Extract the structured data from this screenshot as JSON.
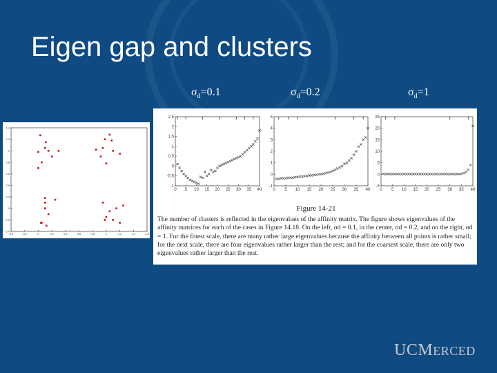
{
  "slide": {
    "title": "Eigen gap and clusters",
    "sigma_labels": [
      {
        "pre": "σ",
        "sub": "d",
        "post": "=0.1"
      },
      {
        "pre": "σ",
        "sub": "d",
        "post": "=0.2"
      },
      {
        "pre": "σ",
        "sub": "d",
        "post": "=1"
      }
    ],
    "logo": {
      "part1": "UC",
      "part2": "M",
      "part3": "ERCED"
    },
    "colors": {
      "background": "#0f4a82",
      "points": "#cc1111",
      "text": "#ffffff"
    }
  },
  "figure": {
    "label": "Figure 14-21",
    "caption": "The number of clusters is reflected in the eigenvalues of the affinity matrix. The figure shows eigenvalues of the affinity matrices for each of the cases in Figure 14.18. On the left, σd = 0.1, in the center, σd = 0.2, and on the right, σd = 1. For the finest scale, there are many rather large eigenvalues because the affinity between all points is rather small; for the next scale, there are four eigenvalues rather larger than the rest; and for the coarsest scale, there are only two eigenvalues rather larger than the rest."
  },
  "chart_data": [
    {
      "type": "scatter",
      "title": "",
      "xlim": [
        -0.4,
        1.6
      ],
      "ylim": [
        -0.4,
        1.4
      ],
      "xticks": [
        "-0.4",
        "-0.2",
        "0",
        "0.2",
        "0.4",
        "0.6",
        "0.8",
        "1",
        "1.2",
        "1.4",
        "1.6"
      ],
      "yticks": [
        "-0.4",
        "-0.2",
        "0",
        "0.2",
        "0.4",
        "0.6",
        "0.8",
        "1",
        "1.2",
        "1.4"
      ],
      "points": [
        [
          0.03,
          1.27
        ],
        [
          0.11,
          1.15
        ],
        [
          0.15,
          1.0
        ],
        [
          0.2,
          0.9
        ],
        [
          0.3,
          1.0
        ],
        [
          0.0,
          0.98
        ],
        [
          0.05,
          0.8
        ],
        [
          0.0,
          0.7
        ],
        [
          0.1,
          1.05
        ],
        [
          1.05,
          1.28
        ],
        [
          0.95,
          1.05
        ],
        [
          0.85,
          1.02
        ],
        [
          0.92,
          0.9
        ],
        [
          1.1,
          1.0
        ],
        [
          1.0,
          0.78
        ],
        [
          1.2,
          0.95
        ],
        [
          1.08,
          1.18
        ],
        [
          0.98,
          1.2
        ],
        [
          0.1,
          0.18
        ],
        [
          0.25,
          0.15
        ],
        [
          0.1,
          0.0
        ],
        [
          0.15,
          -0.1
        ],
        [
          0.05,
          -0.25
        ],
        [
          0.12,
          -0.3
        ],
        [
          0.1,
          0.1
        ],
        [
          0.04,
          -0.25
        ],
        [
          0.95,
          0.1
        ],
        [
          1.05,
          -0.05
        ],
        [
          1.15,
          0.0
        ],
        [
          1.2,
          -0.25
        ],
        [
          1.1,
          -0.2
        ],
        [
          1.0,
          -0.15
        ],
        [
          0.98,
          -0.2
        ],
        [
          1.25,
          0.05
        ]
      ]
    },
    {
      "type": "scatter",
      "xlim": [
        0,
        40
      ],
      "ylim": [
        -1,
        2.5
      ],
      "xticks": [
        "0",
        "5",
        "10",
        "15",
        "20",
        "25",
        "30",
        "35",
        "40"
      ],
      "yticks": [
        "-1",
        "-0.5",
        "0",
        "0.5",
        "1",
        "1.5",
        "2",
        "2.5"
      ],
      "points": [
        [
          1,
          0.1
        ],
        [
          2,
          -0.1
        ],
        [
          3,
          -0.25
        ],
        [
          4,
          -0.4
        ],
        [
          5,
          -0.5
        ],
        [
          6,
          -0.6
        ],
        [
          7,
          -0.7
        ],
        [
          8,
          -0.75
        ],
        [
          9,
          -0.8
        ],
        [
          10,
          -0.85
        ],
        [
          11,
          -0.9
        ],
        [
          12,
          -0.55
        ],
        [
          13,
          -0.6
        ],
        [
          14,
          -0.3
        ],
        [
          15,
          -0.5
        ],
        [
          16,
          -0.4
        ],
        [
          17,
          -0.2
        ],
        [
          18,
          -0.3
        ],
        [
          19,
          -0.25
        ],
        [
          20,
          -0.1
        ],
        [
          21,
          0.0
        ],
        [
          22,
          0.05
        ],
        [
          23,
          0.1
        ],
        [
          24,
          0.15
        ],
        [
          25,
          0.2
        ],
        [
          26,
          0.25
        ],
        [
          27,
          0.3
        ],
        [
          28,
          0.35
        ],
        [
          29,
          0.4
        ],
        [
          30,
          0.45
        ],
        [
          31,
          0.5
        ],
        [
          32,
          0.6
        ],
        [
          33,
          0.7
        ],
        [
          34,
          0.8
        ],
        [
          35,
          0.9
        ],
        [
          36,
          1.0
        ],
        [
          37,
          1.1
        ],
        [
          38,
          1.25
        ],
        [
          39,
          1.4
        ],
        [
          40,
          1.8
        ]
      ],
      "top_ticks": [
        1,
        5,
        13,
        21,
        29,
        33,
        37
      ]
    },
    {
      "type": "scatter",
      "xlim": [
        0,
        40
      ],
      "ylim": [
        -1,
        5
      ],
      "xticks": [
        "0",
        "5",
        "10",
        "15",
        "20",
        "25",
        "30",
        "35",
        "40"
      ],
      "yticks": [
        "-1",
        "0",
        "1",
        "2",
        "3",
        "4",
        "5"
      ],
      "points": [
        [
          1,
          -0.4
        ],
        [
          2,
          -0.4
        ],
        [
          3,
          -0.35
        ],
        [
          4,
          -0.35
        ],
        [
          5,
          -0.35
        ],
        [
          6,
          -0.3
        ],
        [
          7,
          -0.3
        ],
        [
          8,
          -0.3
        ],
        [
          9,
          -0.25
        ],
        [
          10,
          -0.25
        ],
        [
          11,
          -0.2
        ],
        [
          12,
          -0.2
        ],
        [
          13,
          -0.15
        ],
        [
          14,
          -0.15
        ],
        [
          15,
          -0.1
        ],
        [
          16,
          -0.1
        ],
        [
          17,
          -0.05
        ],
        [
          18,
          -0.05
        ],
        [
          19,
          0.0
        ],
        [
          20,
          0.0
        ],
        [
          21,
          0.05
        ],
        [
          22,
          0.1
        ],
        [
          23,
          0.15
        ],
        [
          24,
          0.2
        ],
        [
          25,
          0.3
        ],
        [
          26,
          0.4
        ],
        [
          27,
          0.5
        ],
        [
          28,
          0.6
        ],
        [
          29,
          0.7
        ],
        [
          30,
          0.9
        ],
        [
          31,
          1.0
        ],
        [
          32,
          1.2
        ],
        [
          33,
          1.4
        ],
        [
          34,
          1.7
        ],
        [
          35,
          2.0
        ],
        [
          36,
          2.4
        ],
        [
          37,
          2.6
        ],
        [
          38,
          3.0
        ],
        [
          39,
          3.2
        ],
        [
          40,
          4.0
        ]
      ],
      "top_ticks": [
        2,
        6,
        10,
        26,
        34,
        38
      ]
    },
    {
      "type": "scatter",
      "xlim": [
        0,
        40
      ],
      "ylim": [
        -5,
        25
      ],
      "xticks": [
        "0",
        "5",
        "10",
        "15",
        "20",
        "25",
        "30",
        "35",
        "40"
      ],
      "yticks": [
        "-5",
        "0",
        "5",
        "10",
        "15",
        "20",
        "25"
      ],
      "points": [
        [
          1,
          0.2
        ],
        [
          2,
          0.1
        ],
        [
          3,
          0.1
        ],
        [
          4,
          0.1
        ],
        [
          5,
          0.1
        ],
        [
          6,
          0.1
        ],
        [
          7,
          0.1
        ],
        [
          8,
          0.1
        ],
        [
          9,
          0.1
        ],
        [
          10,
          0.1
        ],
        [
          11,
          0.1
        ],
        [
          12,
          0.1
        ],
        [
          13,
          0.1
        ],
        [
          14,
          0.1
        ],
        [
          15,
          0.1
        ],
        [
          16,
          0.1
        ],
        [
          17,
          0.1
        ],
        [
          18,
          0.1
        ],
        [
          19,
          0.1
        ],
        [
          20,
          0.1
        ],
        [
          21,
          0.1
        ],
        [
          22,
          0.1
        ],
        [
          23,
          0.1
        ],
        [
          24,
          0.1
        ],
        [
          25,
          0.1
        ],
        [
          26,
          0.1
        ],
        [
          27,
          0.1
        ],
        [
          28,
          0.1
        ],
        [
          29,
          0.1
        ],
        [
          30,
          0.1
        ],
        [
          31,
          0.1
        ],
        [
          32,
          0.1
        ],
        [
          33,
          0.1
        ],
        [
          34,
          0.1
        ],
        [
          35,
          0.2
        ],
        [
          36,
          0.5
        ],
        [
          37,
          1.0
        ],
        [
          38,
          2.0
        ],
        [
          39,
          4.0
        ],
        [
          40,
          21.0
        ]
      ],
      "top_ticks": [
        2,
        6,
        30,
        38
      ]
    }
  ]
}
